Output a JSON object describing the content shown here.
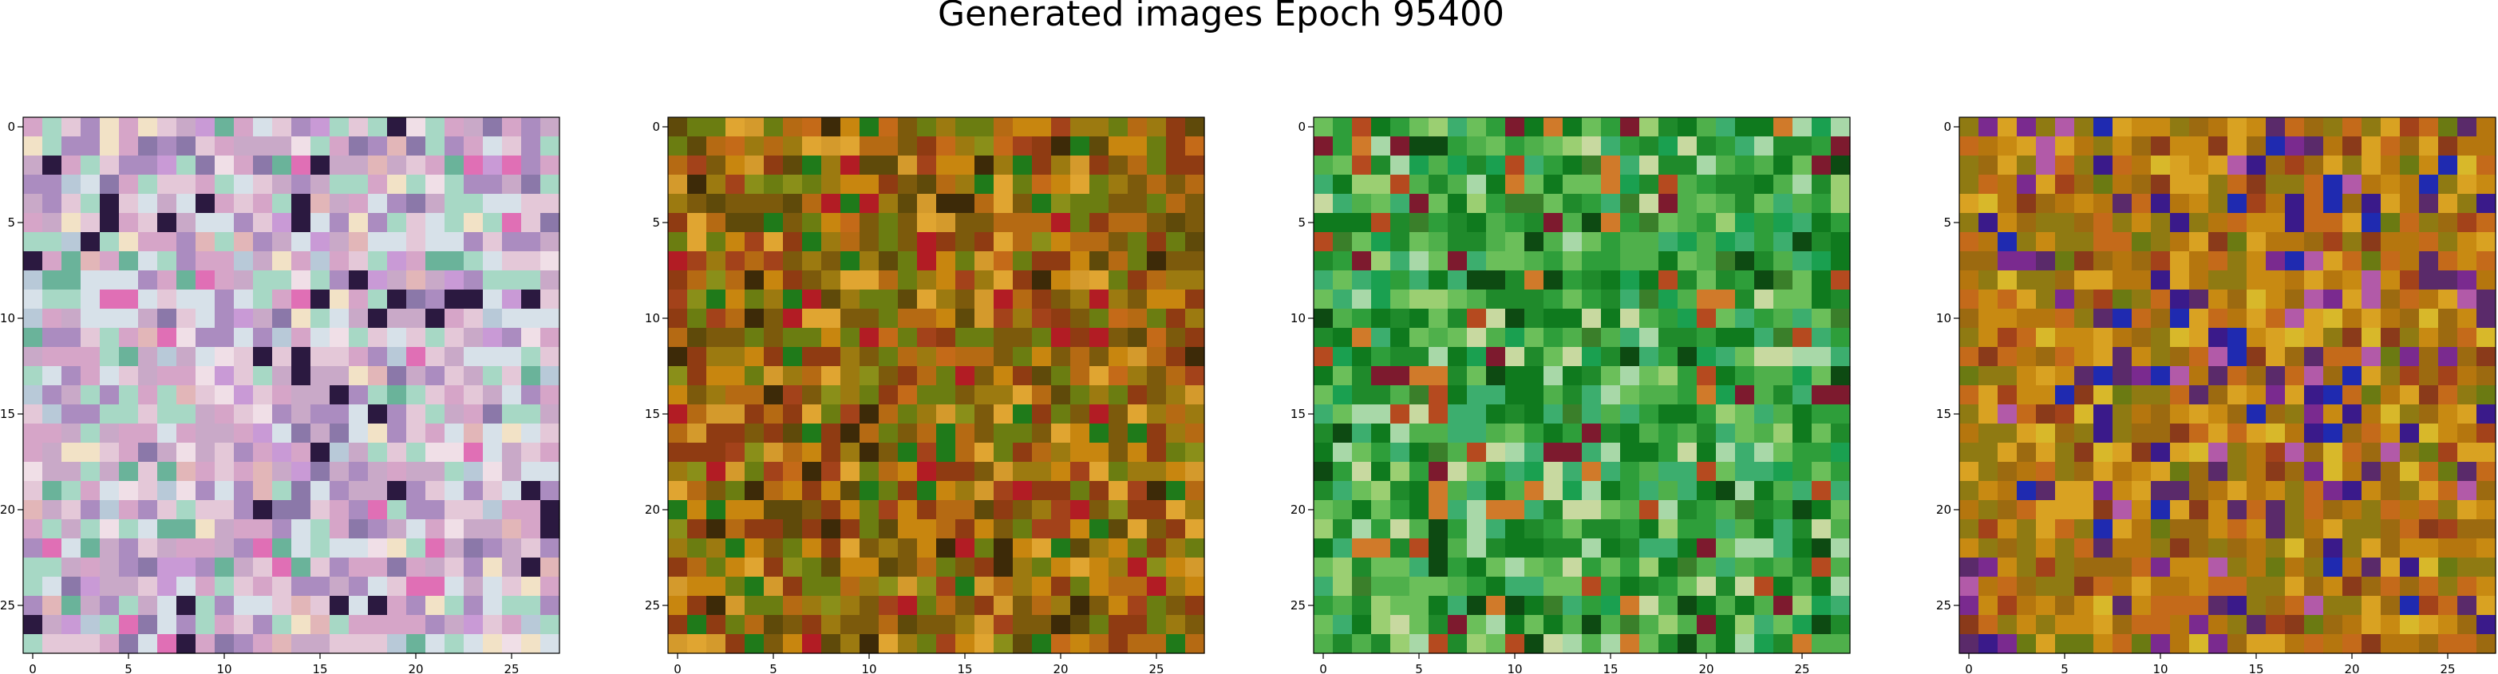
{
  "figure": {
    "title": "Generated images Epoch 95400"
  },
  "chart_data": [
    {
      "type": "heatmap",
      "grid_size": [
        28,
        28
      ],
      "title": "",
      "xlabel": "",
      "ylabel": "",
      "x_ticks": [
        0,
        5,
        10,
        15,
        20,
        25
      ],
      "y_ticks": [
        0,
        5,
        10,
        15,
        20,
        25
      ],
      "xlim": [
        -0.5,
        27.5
      ],
      "ylim": [
        27.5,
        -0.5
      ],
      "grid": false,
      "palette": [
        "#c9a9c8",
        "#e4c8d8",
        "#d7e1e9",
        "#ab8cc0",
        "#d6a5c8",
        "#a7d8c5",
        "#f0dfe7",
        "#c99ad6",
        "#e2b6b8",
        "#8b78a9",
        "#f2e2c6",
        "#b8c9d8",
        "#e06fb5",
        "#6ab39a",
        "#2b1940"
      ],
      "description_of_noise": "random pastel pink/lavender/white pixels"
    },
    {
      "type": "heatmap",
      "grid_size": [
        28,
        28
      ],
      "title": "",
      "xlabel": "",
      "ylabel": "",
      "x_ticks": [
        0,
        5,
        10,
        15,
        20,
        25
      ],
      "y_ticks": [
        0,
        5,
        10,
        15,
        20,
        25
      ],
      "xlim": [
        -0.5,
        27.5
      ],
      "ylim": [
        27.5,
        -0.5
      ],
      "grid": false,
      "palette": [
        "#b56a13",
        "#9c7a10",
        "#c8860f",
        "#7c5a0c",
        "#8f3b12",
        "#6b7d11",
        "#d49a2c",
        "#a3421a",
        "#5f4a0a",
        "#c46a18",
        "#8a8f19",
        "#3d2a08",
        "#b21c24",
        "#1f7a1a",
        "#e0a531"
      ],
      "description_of_noise": "orange/olive/brown pixels with dark vertical streaks"
    },
    {
      "type": "heatmap",
      "grid_size": [
        28,
        28
      ],
      "title": "",
      "xlabel": "",
      "ylabel": "",
      "x_ticks": [
        0,
        5,
        10,
        15,
        20,
        25
      ],
      "y_ticks": [
        0,
        5,
        10,
        15,
        20,
        25
      ],
      "xlim": [
        -0.5,
        27.5
      ],
      "ylim": [
        27.5,
        -0.5
      ],
      "grid": false,
      "palette": [
        "#2e9e3a",
        "#1f8a2b",
        "#4fb04b",
        "#3cae6e",
        "#0f7a1e",
        "#6bbf5a",
        "#9bcf72",
        "#c8d9a0",
        "#1aa050",
        "#3a7f2a",
        "#b54a1f",
        "#d07a2a",
        "#7d1a2e",
        "#0d4a12",
        "#a8d8a8"
      ],
      "description_of_noise": "green pixels with mixed red/yellow patches"
    },
    {
      "type": "heatmap",
      "grid_size": [
        28,
        28
      ],
      "title": "",
      "xlabel": "",
      "ylabel": "",
      "x_ticks": [
        0,
        5,
        10,
        15,
        20,
        25
      ],
      "y_ticks": [
        0,
        5,
        10,
        15,
        20,
        25
      ],
      "xlim": [
        -0.5,
        27.5
      ],
      "ylim": [
        27.5,
        -0.5
      ],
      "grid": false,
      "palette": [
        "#c88a12",
        "#b5760e",
        "#d9a222",
        "#9c6a10",
        "#8f7a12",
        "#c46a1a",
        "#a3421a",
        "#6b7a12",
        "#7a2a8f",
        "#3a1a8a",
        "#b25aa8",
        "#d8b82a",
        "#5a2a6a",
        "#1f2ab0",
        "#8a3a1a"
      ],
      "description_of_noise": "golden/orange pixels with purple/blue blobs in the middle rows"
    }
  ]
}
